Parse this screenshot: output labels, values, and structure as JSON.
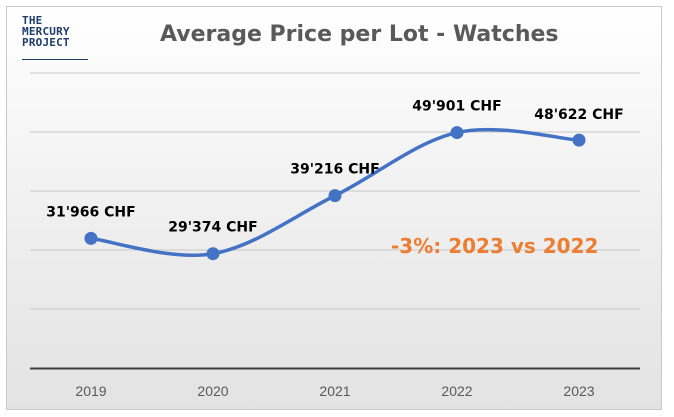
{
  "logo": {
    "line1": "THE",
    "line2": "MERCURY",
    "line3": "PROJECT"
  },
  "chart_data": {
    "type": "line",
    "title": "Average Price per Lot - Watches",
    "categories": [
      "2019",
      "2020",
      "2021",
      "2022",
      "2023"
    ],
    "series": [
      {
        "values": [
          31966,
          29374,
          39216,
          49901,
          48622
        ],
        "color": "#4472c4"
      }
    ],
    "data_labels": [
      "31'966 CHF",
      "29'374 CHF",
      "39'216 CHF",
      "49'901 CHF",
      "48'622 CHF"
    ],
    "xlabel": "",
    "ylabel": "",
    "ylim": [
      10000,
      60000
    ],
    "grid": true,
    "smooth": true,
    "annotation": {
      "text": "-3%: 2023 vs 2022",
      "color": "#ed7d31"
    }
  }
}
